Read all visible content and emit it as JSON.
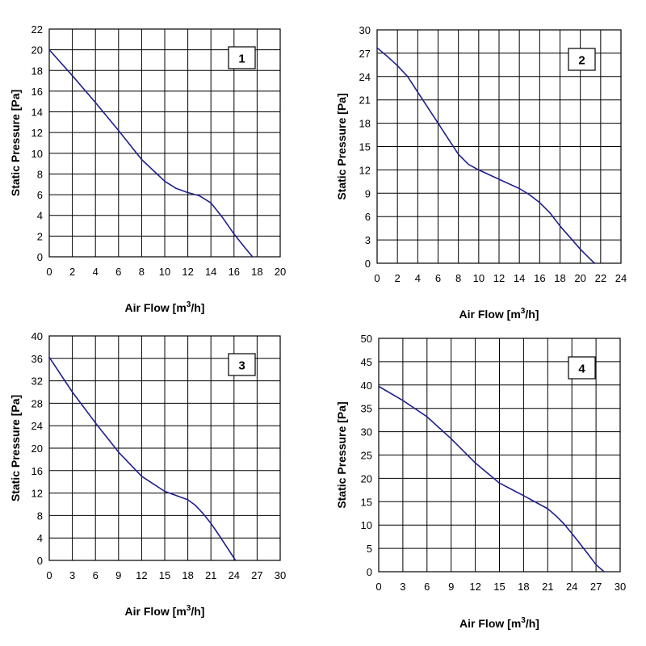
{
  "chart_data": [
    {
      "type": "line",
      "badge": "1",
      "xlabel": "Air Flow [m³/h]",
      "xlabel_main": "Air Flow [m",
      "xlabel_sup": "3",
      "xlabel_tail": "/h]",
      "ylabel": "Static Pressure [Pa]",
      "xlim": [
        0,
        20
      ],
      "ylim": [
        0,
        22
      ],
      "xticks": [
        0,
        2,
        4,
        6,
        8,
        10,
        12,
        14,
        16,
        18,
        20
      ],
      "yticks": [
        0,
        2,
        4,
        6,
        8,
        10,
        12,
        14,
        16,
        18,
        20,
        22
      ],
      "grid": true,
      "line_color": "#1f1f8f",
      "series": [
        {
          "x": [
            0,
            2,
            4,
            6,
            8,
            10,
            11,
            12,
            13,
            14,
            15,
            16,
            17,
            17.6
          ],
          "y": [
            20,
            17.5,
            14.9,
            12.2,
            9.4,
            7.3,
            6.6,
            6.2,
            5.9,
            5.2,
            3.8,
            2.2,
            0.8,
            0
          ]
        }
      ]
    },
    {
      "type": "line",
      "badge": "2",
      "xlabel": "Air Flow [m³/h]",
      "xlabel_main": "Air Flow [m",
      "xlabel_sup": "3",
      "xlabel_tail": "/h]",
      "ylabel": "Static Pressure [Pa]",
      "xlim": [
        0,
        24
      ],
      "ylim": [
        0,
        30
      ],
      "xticks": [
        0,
        2,
        4,
        6,
        8,
        10,
        12,
        14,
        16,
        18,
        20,
        22,
        24
      ],
      "yticks": [
        0,
        3,
        6,
        9,
        12,
        15,
        18,
        21,
        24,
        27,
        30
      ],
      "grid": true,
      "line_color": "#1f1f8f",
      "series": [
        {
          "x": [
            0,
            1,
            2,
            3,
            4,
            5,
            6,
            7,
            8,
            9,
            10,
            12,
            14,
            15,
            16,
            17,
            18,
            19,
            20,
            21,
            21.4
          ],
          "y": [
            27.7,
            26.6,
            25.4,
            24.0,
            22.0,
            20.0,
            18.0,
            16.0,
            14.0,
            12.7,
            12.0,
            10.8,
            9.6,
            8.8,
            7.8,
            6.5,
            4.8,
            3.3,
            1.8,
            0.5,
            0
          ]
        }
      ]
    },
    {
      "type": "line",
      "badge": "3",
      "xlabel": "Air Flow [m³/h]",
      "xlabel_main": "Air Flow [m",
      "xlabel_sup": "3",
      "xlabel_tail": "/h]",
      "ylabel": "Static Pressure [Pa]",
      "xlim": [
        0,
        30
      ],
      "ylim": [
        0,
        40
      ],
      "xticks": [
        0,
        3,
        6,
        9,
        12,
        15,
        18,
        21,
        24,
        27,
        30
      ],
      "yticks": [
        0,
        4,
        8,
        12,
        16,
        20,
        24,
        28,
        32,
        36,
        40
      ],
      "grid": true,
      "line_color": "#1f1f8f",
      "series": [
        {
          "x": [
            0,
            3,
            6,
            9,
            12,
            15,
            18,
            19,
            20,
            21,
            22,
            23,
            24.2
          ],
          "y": [
            36.2,
            30.0,
            24.5,
            19.3,
            15.0,
            12.3,
            10.8,
            9.8,
            8.3,
            6.6,
            4.6,
            2.5,
            0
          ]
        }
      ]
    },
    {
      "type": "line",
      "badge": "4",
      "xlabel": "Air Flow [m³/h]",
      "xlabel_main": "Air Flow [m",
      "xlabel_sup": "3",
      "xlabel_tail": "/h]",
      "ylabel": "Static Pressure [Pa]",
      "xlim": [
        0,
        30
      ],
      "ylim": [
        0,
        50
      ],
      "xticks": [
        0,
        3,
        6,
        9,
        12,
        15,
        18,
        21,
        24,
        27,
        30
      ],
      "yticks": [
        0,
        5,
        10,
        15,
        20,
        25,
        30,
        35,
        40,
        45,
        50
      ],
      "grid": true,
      "line_color": "#1f1f8f",
      "series": [
        {
          "x": [
            0,
            3,
            6,
            9,
            12,
            15,
            18,
            21,
            22,
            23,
            24,
            25,
            26,
            27,
            28
          ],
          "y": [
            39.7,
            36.7,
            33.2,
            28.5,
            23.3,
            19.0,
            16.3,
            13.5,
            12.0,
            10.3,
            8.2,
            6.0,
            3.8,
            1.5,
            0
          ]
        }
      ]
    }
  ]
}
